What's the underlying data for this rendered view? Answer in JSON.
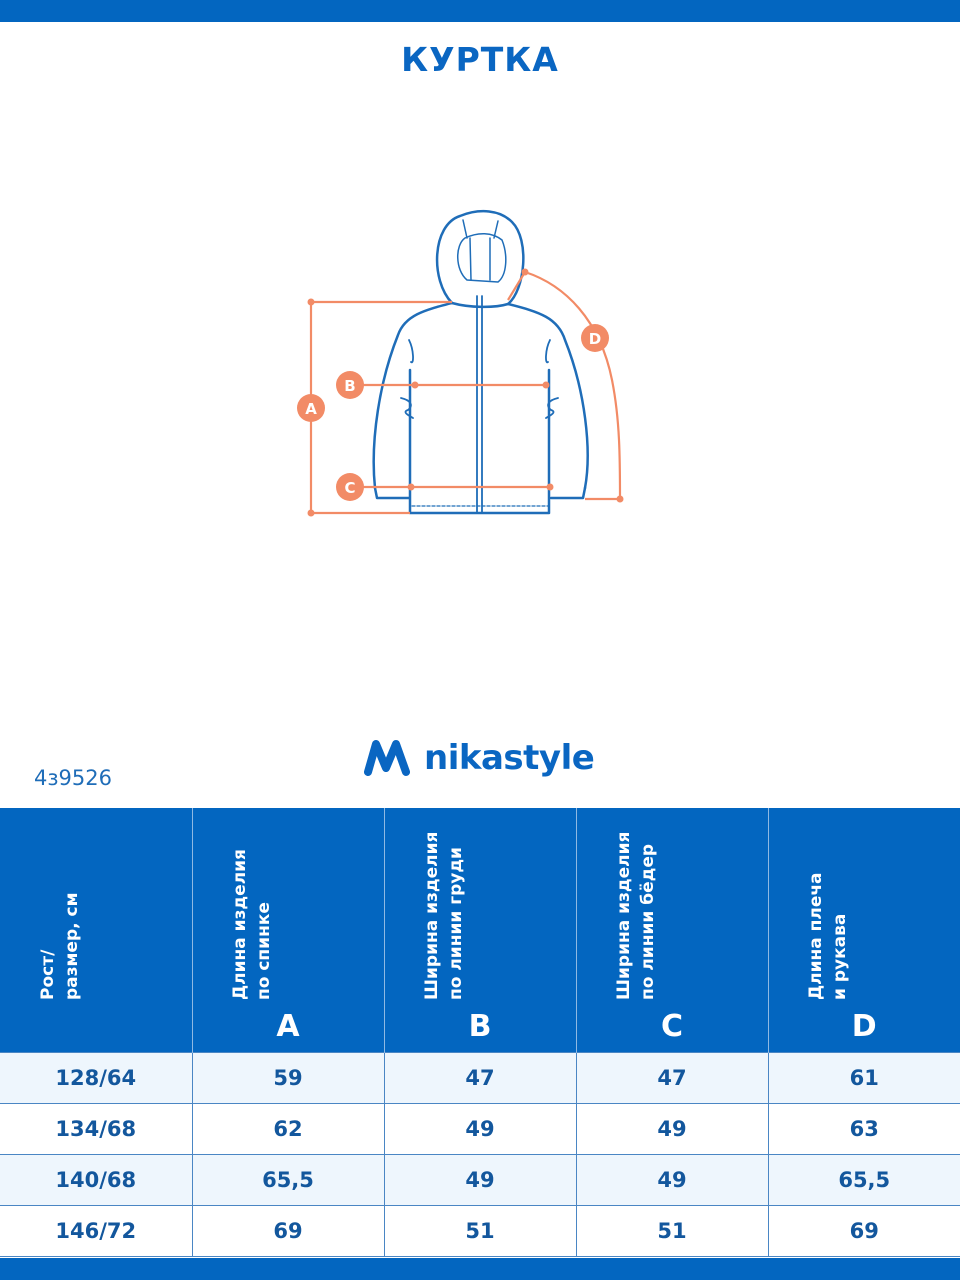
{
  "title": "КУРТКА",
  "article": "4з9526",
  "brand": "nikastyle",
  "colors": {
    "brand_blue": "#0366c0",
    "measure_orange": "#f28b66",
    "row_tint": "#eef6fd"
  },
  "diagram": {
    "markers": [
      "A",
      "B",
      "C",
      "D"
    ]
  },
  "table": {
    "headers": [
      {
        "label": "Рост/\nразмер, см",
        "letter": ""
      },
      {
        "label": "Длина изделия\nпо спинке",
        "letter": "A"
      },
      {
        "label": "Ширина изделия\nпо линии груди",
        "letter": "B"
      },
      {
        "label": "Ширина изделия\nпо линии бёдер",
        "letter": "C"
      },
      {
        "label": "Длина плеча\nи рукава",
        "letter": "D"
      }
    ],
    "rows": [
      [
        "128/64",
        "59",
        "47",
        "47",
        "61"
      ],
      [
        "134/68",
        "62",
        "49",
        "49",
        "63"
      ],
      [
        "140/68",
        "65,5",
        "49",
        "49",
        "65,5"
      ],
      [
        "146/72",
        "69",
        "51",
        "51",
        "69"
      ]
    ]
  }
}
